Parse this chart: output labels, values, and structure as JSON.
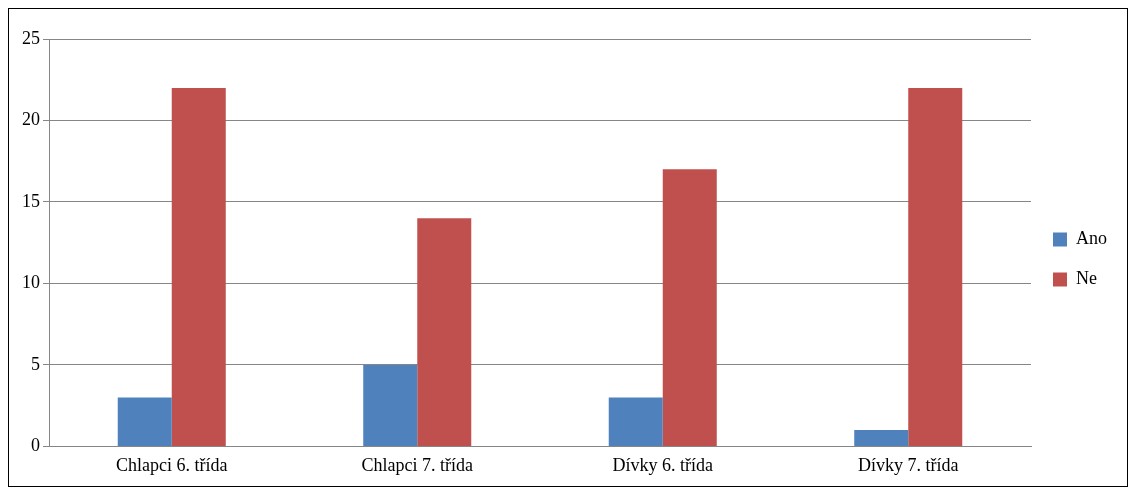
{
  "chart_data": {
    "type": "bar",
    "categories": [
      "Chlapci 6. třída",
      "Chlapci 7. třída",
      "Dívky 6. třída",
      "Dívky 7. třída"
    ],
    "series": [
      {
        "name": "Ano",
        "color": "#4f81bd",
        "values": [
          3,
          5,
          3,
          1
        ]
      },
      {
        "name": "Ne",
        "color": "#c0504d",
        "values": [
          22,
          14,
          17,
          22
        ]
      }
    ],
    "ylim": [
      0,
      25
    ],
    "yticks": [
      0,
      5,
      10,
      15,
      20,
      25
    ],
    "grid": "y",
    "legend": "right"
  }
}
